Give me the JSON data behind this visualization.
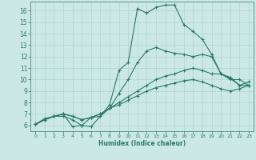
{
  "xlabel": "Humidex (Indice chaleur)",
  "xlim": [
    -0.5,
    23.5
  ],
  "ylim": [
    5.5,
    16.8
  ],
  "xticks": [
    0,
    1,
    2,
    3,
    4,
    5,
    6,
    7,
    8,
    9,
    10,
    11,
    12,
    13,
    14,
    15,
    16,
    17,
    18,
    19,
    20,
    21,
    22,
    23
  ],
  "yticks": [
    6,
    7,
    8,
    9,
    10,
    11,
    12,
    13,
    14,
    15,
    16
  ],
  "background_color": "#cce8e5",
  "grid_color": "#aacfcc",
  "line_color": "#2a7a6a",
  "curves": [
    {
      "x": [
        0,
        1,
        2,
        3,
        4,
        5,
        6,
        7,
        8,
        9,
        10,
        11,
        12,
        13,
        14,
        15,
        16,
        17,
        18,
        19,
        20,
        21,
        22,
        23
      ],
      "y": [
        6.1,
        6.6,
        6.8,
        7.0,
        5.9,
        6.0,
        6.7,
        6.8,
        7.8,
        10.8,
        11.5,
        16.2,
        15.8,
        16.3,
        16.5,
        16.5,
        14.8,
        14.2,
        13.5,
        12.2,
        10.5,
        10.2,
        9.5,
        9.5
      ]
    },
    {
      "x": [
        0,
        1,
        2,
        3,
        4,
        5,
        6,
        7,
        8,
        9,
        10,
        11,
        12,
        13,
        14,
        15,
        16,
        17,
        18,
        19,
        20,
        21,
        22,
        23
      ],
      "y": [
        6.1,
        6.5,
        6.8,
        6.8,
        6.5,
        6.0,
        5.9,
        6.8,
        7.5,
        8.8,
        10.0,
        11.5,
        12.5,
        12.8,
        12.5,
        12.3,
        12.2,
        12.0,
        12.2,
        12.0,
        10.5,
        10.0,
        10.0,
        9.5
      ]
    },
    {
      "x": [
        0,
        1,
        2,
        3,
        4,
        5,
        6,
        7,
        8,
        9,
        10,
        11,
        12,
        13,
        14,
        15,
        16,
        17,
        18,
        19,
        20,
        21,
        22,
        23
      ],
      "y": [
        6.1,
        6.5,
        6.8,
        7.0,
        6.8,
        6.5,
        6.7,
        7.0,
        7.5,
        8.0,
        8.5,
        9.0,
        9.5,
        10.0,
        10.3,
        10.5,
        10.8,
        11.0,
        10.8,
        10.5,
        10.5,
        10.1,
        9.5,
        9.8
      ]
    },
    {
      "x": [
        0,
        1,
        2,
        3,
        4,
        5,
        6,
        7,
        8,
        9,
        10,
        11,
        12,
        13,
        14,
        15,
        16,
        17,
        18,
        19,
        20,
        21,
        22,
        23
      ],
      "y": [
        6.1,
        6.5,
        6.8,
        7.0,
        6.8,
        6.5,
        6.7,
        7.0,
        7.5,
        7.8,
        8.2,
        8.6,
        9.0,
        9.3,
        9.5,
        9.7,
        9.9,
        10.0,
        9.8,
        9.5,
        9.2,
        9.0,
        9.2,
        9.5
      ]
    }
  ]
}
